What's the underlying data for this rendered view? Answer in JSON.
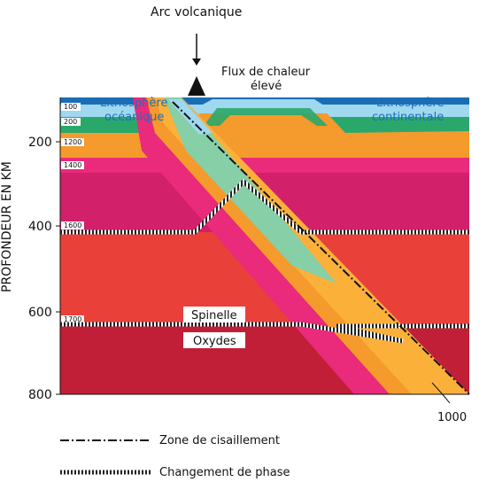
{
  "title_arc": "Arc volcanique",
  "heat_flow": [
    "Flux de chaleur",
    "élevé"
  ],
  "litho_oceanic": [
    "Lithosphère",
    "océanique"
  ],
  "litho_continental": [
    "Lithosphère",
    "continentale"
  ],
  "y_axis": {
    "label": "PROFONDEUR EN KM",
    "ticks": [
      "200",
      "400",
      "600",
      "800"
    ]
  },
  "isotherms": [
    "100",
    "200",
    "1200",
    "1400",
    "1600",
    "1700"
  ],
  "phase_labels": [
    "Spinelle",
    "Oxydes"
  ],
  "slab_temp": "1000",
  "legend": {
    "shear_zone": "Zone de cisaillement",
    "phase_change": "Changement de phase"
  },
  "colors": {
    "upper_blue": "#1a6db5",
    "light_blue": "#9fd8ef",
    "green": "#2aa86b",
    "orange": "#f59a2c",
    "pink": "#ea2a7a",
    "magenta": "#d2206a",
    "red": "#e9403a",
    "dark_red": "#c11f37",
    "slab_green": "#86cfa7",
    "slab_yellow": "#fbb03a"
  }
}
